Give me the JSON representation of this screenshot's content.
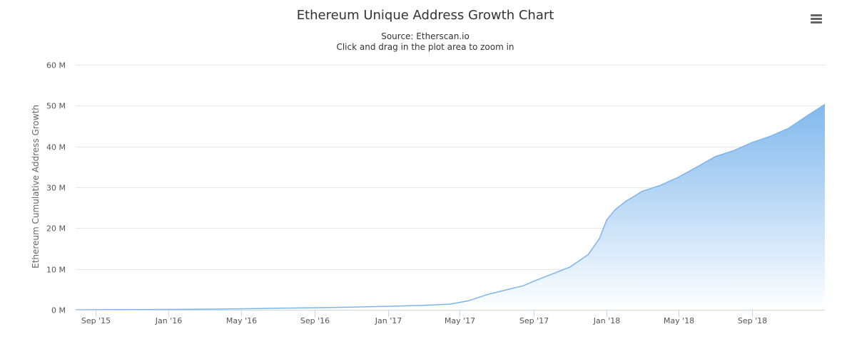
{
  "chart_data": {
    "type": "area",
    "title": "Ethereum Unique Address Growth Chart",
    "subtitle": "Source: Etherscan.io",
    "subtitle2": "Click and drag in the plot area to zoom in",
    "xlabel": "",
    "ylabel": "Ethereum Cumulative Address Growth",
    "x_type": "date",
    "xlim": [
      "2015-07-30",
      "2018-12-31"
    ],
    "ylim": [
      0,
      60000000
    ],
    "yticks": [
      {
        "value": 0,
        "label": "0 M"
      },
      {
        "value": 10000000,
        "label": "10 M"
      },
      {
        "value": 20000000,
        "label": "20 M"
      },
      {
        "value": 30000000,
        "label": "30 M"
      },
      {
        "value": 40000000,
        "label": "40 M"
      },
      {
        "value": 50000000,
        "label": "50 M"
      },
      {
        "value": 60000000,
        "label": "60 M"
      }
    ],
    "xticks": [
      {
        "value": "2015-09-01",
        "label": "Sep '15"
      },
      {
        "value": "2016-01-01",
        "label": "Jan '16"
      },
      {
        "value": "2016-05-01",
        "label": "May '16"
      },
      {
        "value": "2016-09-01",
        "label": "Sep '16"
      },
      {
        "value": "2017-01-01",
        "label": "Jan '17"
      },
      {
        "value": "2017-05-01",
        "label": "May '17"
      },
      {
        "value": "2017-09-01",
        "label": "Sep '17"
      },
      {
        "value": "2018-01-01",
        "label": "Jan '18"
      },
      {
        "value": "2018-05-01",
        "label": "May '18"
      },
      {
        "value": "2018-09-01",
        "label": "Sep '18"
      }
    ],
    "grid": true,
    "legend": "none",
    "colors": {
      "line": "#7cb5ec",
      "area_top": "#7cb5ec",
      "area_bottom": "#ffffff",
      "grid": "#e6e6e6",
      "axis": "#ccd6eb"
    },
    "series": [
      {
        "values": [
          {
            "x": "2015-07-30",
            "y": 0
          },
          {
            "x": "2015-09-01",
            "y": 20000
          },
          {
            "x": "2015-11-01",
            "y": 60000
          },
          {
            "x": "2016-01-01",
            "y": 90000
          },
          {
            "x": "2016-03-01",
            "y": 150000
          },
          {
            "x": "2016-05-01",
            "y": 250000
          },
          {
            "x": "2016-07-01",
            "y": 400000
          },
          {
            "x": "2016-09-01",
            "y": 500000
          },
          {
            "x": "2016-11-01",
            "y": 650000
          },
          {
            "x": "2017-01-01",
            "y": 850000
          },
          {
            "x": "2017-03-01",
            "y": 1100000
          },
          {
            "x": "2017-04-15",
            "y": 1400000
          },
          {
            "x": "2017-05-15",
            "y": 2200000
          },
          {
            "x": "2017-06-15",
            "y": 3700000
          },
          {
            "x": "2017-07-15",
            "y": 4800000
          },
          {
            "x": "2017-08-15",
            "y": 5900000
          },
          {
            "x": "2017-09-01",
            "y": 7000000
          },
          {
            "x": "2017-10-01",
            "y": 8700000
          },
          {
            "x": "2017-11-01",
            "y": 10500000
          },
          {
            "x": "2017-12-01",
            "y": 13500000
          },
          {
            "x": "2017-12-20",
            "y": 17500000
          },
          {
            "x": "2018-01-01",
            "y": 22000000
          },
          {
            "x": "2018-01-15",
            "y": 24500000
          },
          {
            "x": "2018-02-01",
            "y": 26500000
          },
          {
            "x": "2018-03-01",
            "y": 29000000
          },
          {
            "x": "2018-04-01",
            "y": 30500000
          },
          {
            "x": "2018-05-01",
            "y": 32500000
          },
          {
            "x": "2018-06-01",
            "y": 35000000
          },
          {
            "x": "2018-07-01",
            "y": 37500000
          },
          {
            "x": "2018-08-01",
            "y": 39000000
          },
          {
            "x": "2018-09-01",
            "y": 41000000
          },
          {
            "x": "2018-10-01",
            "y": 42500000
          },
          {
            "x": "2018-11-01",
            "y": 44500000
          },
          {
            "x": "2018-12-01",
            "y": 47500000
          },
          {
            "x": "2018-12-31",
            "y": 50300000
          }
        ]
      }
    ]
  }
}
